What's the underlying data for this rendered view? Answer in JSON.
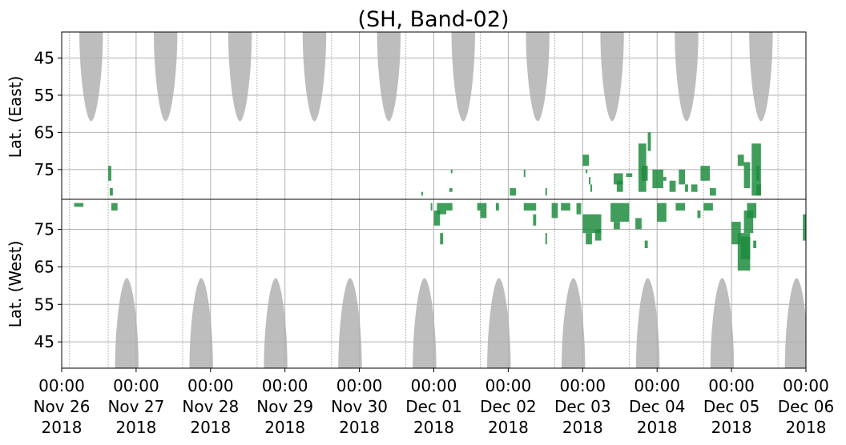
{
  "chart_data": {
    "type": "heatmap",
    "title": "(SH, Band-02)",
    "x_ticks": [
      {
        "time": "2018-11-26T00:00",
        "label": [
          "00:00",
          "Nov 26",
          "2018"
        ]
      },
      {
        "time": "2018-11-27T00:00",
        "label": [
          "00:00",
          "Nov 27",
          "2018"
        ]
      },
      {
        "time": "2018-11-28T00:00",
        "label": [
          "00:00",
          "Nov 28",
          "2018"
        ]
      },
      {
        "time": "2018-11-29T00:00",
        "label": [
          "00:00",
          "Nov 29",
          "2018"
        ]
      },
      {
        "time": "2018-11-30T00:00",
        "label": [
          "00:00",
          "Nov 30",
          "2018"
        ]
      },
      {
        "time": "2018-12-01T00:00",
        "label": [
          "00:00",
          "Dec 01",
          "2018"
        ]
      },
      {
        "time": "2018-12-02T00:00",
        "label": [
          "00:00",
          "Dec 02",
          "2018"
        ]
      },
      {
        "time": "2018-12-03T00:00",
        "label": [
          "00:00",
          "Dec 03",
          "2018"
        ]
      },
      {
        "time": "2018-12-04T00:00",
        "label": [
          "00:00",
          "Dec 04",
          "2018"
        ]
      },
      {
        "time": "2018-12-05T00:00",
        "label": [
          "00:00",
          "Dec 05",
          "2018"
        ]
      },
      {
        "time": "2018-12-06T00:00",
        "label": [
          "00:00",
          "Dec 06",
          "2018"
        ]
      }
    ],
    "xlim": [
      "2018-11-26T00:00",
      "2018-12-06T00:00"
    ],
    "panels": [
      {
        "id": "east",
        "ylabel": "Lat. (East)",
        "yticks": [
          45,
          55,
          65,
          75
        ],
        "ylim": [
          38,
          83
        ],
        "invert": true,
        "grid": true,
        "daylight_color": "#bdbdbd",
        "daylight_regions": [
          {
            "center": "2018-11-26T09:30",
            "half_width_hours": 3.8,
            "max_lat": 62
          },
          {
            "center": "2018-11-27T09:30",
            "half_width_hours": 3.8,
            "max_lat": 62
          },
          {
            "center": "2018-11-28T09:30",
            "half_width_hours": 3.8,
            "max_lat": 62
          },
          {
            "center": "2018-11-29T09:30",
            "half_width_hours": 3.8,
            "max_lat": 62
          },
          {
            "center": "2018-11-30T09:30",
            "half_width_hours": 3.8,
            "max_lat": 62
          },
          {
            "center": "2018-12-01T09:30",
            "half_width_hours": 3.8,
            "max_lat": 62
          },
          {
            "center": "2018-12-02T09:30",
            "half_width_hours": 3.8,
            "max_lat": 62
          },
          {
            "center": "2018-12-03T09:30",
            "half_width_hours": 3.8,
            "max_lat": 62
          },
          {
            "center": "2018-12-04T09:30",
            "half_width_hours": 3.8,
            "max_lat": 62
          },
          {
            "center": "2018-12-05T09:30",
            "half_width_hours": 3.8,
            "max_lat": 62
          }
        ],
        "vertical_lines": [
          "2018-11-26T02:30",
          "2018-11-26T15:00",
          "2018-11-27T15:00",
          "2018-11-28T15:00",
          "2018-11-29T15:00",
          "2018-11-30T15:00",
          "2018-12-01T15:00",
          "2018-12-02T15:00",
          "2018-12-03T15:00",
          "2018-12-04T15:00",
          "2018-12-05T15:00"
        ],
        "echo_color": "#1e8c3e",
        "echoes": [
          {
            "t0": "2018-11-26T15:00",
            "t1": "2018-11-26T16:00",
            "lat0": 74,
            "lat1": 78
          },
          {
            "t0": "2018-11-26T15:30",
            "t1": "2018-11-26T16:30",
            "lat0": 80,
            "lat1": 82
          },
          {
            "t0": "2018-11-30T20:00",
            "t1": "2018-11-30T20:30",
            "lat0": 81,
            "lat1": 82
          },
          {
            "t0": "2018-12-01T05:00",
            "t1": "2018-12-01T06:00",
            "lat0": 80,
            "lat1": 81
          },
          {
            "t0": "2018-12-01T05:30",
            "t1": "2018-12-01T06:00",
            "lat0": 75,
            "lat1": 76
          },
          {
            "t0": "2018-12-02T00:30",
            "t1": "2018-12-02T02:30",
            "lat0": 80,
            "lat1": 82
          },
          {
            "t0": "2018-12-02T05:00",
            "t1": "2018-12-02T05:30",
            "lat0": 75,
            "lat1": 77
          },
          {
            "t0": "2018-12-02T12:00",
            "t1": "2018-12-02T12:30",
            "lat0": 80,
            "lat1": 82
          },
          {
            "t0": "2018-12-03T00:00",
            "t1": "2018-12-03T02:00",
            "lat0": 71,
            "lat1": 74
          },
          {
            "t0": "2018-12-03T01:00",
            "t1": "2018-12-03T01:30",
            "lat0": 75,
            "lat1": 76
          },
          {
            "t0": "2018-12-03T02:00",
            "t1": "2018-12-03T02:30",
            "lat0": 77,
            "lat1": 79
          },
          {
            "t0": "2018-12-03T02:30",
            "t1": "2018-12-03T03:00",
            "lat0": 79,
            "lat1": 81
          },
          {
            "t0": "2018-12-03T10:00",
            "t1": "2018-12-03T13:00",
            "lat0": 76,
            "lat1": 79
          },
          {
            "t0": "2018-12-03T11:00",
            "t1": "2018-12-03T13:00",
            "lat0": 78,
            "lat1": 81
          },
          {
            "t0": "2018-12-03T14:00",
            "t1": "2018-12-03T16:00",
            "lat0": 76,
            "lat1": 77
          },
          {
            "t0": "2018-12-03T18:00",
            "t1": "2018-12-03T20:30",
            "lat0": 68,
            "lat1": 81
          },
          {
            "t0": "2018-12-03T19:00",
            "t1": "2018-12-03T21:00",
            "lat0": 74,
            "lat1": 78
          },
          {
            "t0": "2018-12-03T21:00",
            "t1": "2018-12-03T22:00",
            "lat0": 65,
            "lat1": 70
          },
          {
            "t0": "2018-12-03T22:30",
            "t1": "2018-12-04T02:00",
            "lat0": 75,
            "lat1": 80
          },
          {
            "t0": "2018-12-04T02:00",
            "t1": "2018-12-04T03:00",
            "lat0": 77,
            "lat1": 78
          },
          {
            "t0": "2018-12-04T04:00",
            "t1": "2018-12-04T06:00",
            "lat0": 78,
            "lat1": 81
          },
          {
            "t0": "2018-12-04T07:00",
            "t1": "2018-12-04T09:00",
            "lat0": 75,
            "lat1": 79
          },
          {
            "t0": "2018-12-04T09:00",
            "t1": "2018-12-04T10:00",
            "lat0": 79,
            "lat1": 81
          },
          {
            "t0": "2018-12-04T11:00",
            "t1": "2018-12-04T13:00",
            "lat0": 79,
            "lat1": 81
          },
          {
            "t0": "2018-12-04T14:00",
            "t1": "2018-12-04T17:00",
            "lat0": 74,
            "lat1": 78
          },
          {
            "t0": "2018-12-04T17:00",
            "t1": "2018-12-04T19:00",
            "lat0": 80,
            "lat1": 82
          },
          {
            "t0": "2018-12-05T02:00",
            "t1": "2018-12-05T04:00",
            "lat0": 71,
            "lat1": 74
          },
          {
            "t0": "2018-12-05T04:00",
            "t1": "2018-12-05T06:00",
            "lat0": 73,
            "lat1": 80
          },
          {
            "t0": "2018-12-05T06:30",
            "t1": "2018-12-05T09:30",
            "lat0": 68,
            "lat1": 82
          },
          {
            "t0": "2018-12-05T08:00",
            "t1": "2018-12-05T09:00",
            "lat0": 74,
            "lat1": 78
          },
          {
            "t0": "2018-12-05T08:00",
            "t1": "2018-12-05T09:30",
            "lat0": 79,
            "lat1": 82
          }
        ]
      },
      {
        "id": "west",
        "ylabel": "Lat. (West)",
        "yticks": [
          75,
          65,
          55,
          45
        ],
        "ylim": [
          83,
          38
        ],
        "invert": false,
        "grid": true,
        "daylight_color": "#bdbdbd",
        "daylight_regions": [
          {
            "center": "2018-11-26T21:00",
            "half_width_hours": 3.8,
            "max_lat": 62
          },
          {
            "center": "2018-11-27T21:00",
            "half_width_hours": 3.8,
            "max_lat": 62
          },
          {
            "center": "2018-11-28T21:00",
            "half_width_hours": 3.8,
            "max_lat": 62
          },
          {
            "center": "2018-11-29T21:00",
            "half_width_hours": 3.8,
            "max_lat": 62
          },
          {
            "center": "2018-11-30T21:00",
            "half_width_hours": 3.8,
            "max_lat": 62
          },
          {
            "center": "2018-12-01T21:00",
            "half_width_hours": 3.8,
            "max_lat": 62
          },
          {
            "center": "2018-12-02T21:00",
            "half_width_hours": 3.8,
            "max_lat": 62
          },
          {
            "center": "2018-12-03T21:00",
            "half_width_hours": 3.8,
            "max_lat": 62
          },
          {
            "center": "2018-12-04T21:00",
            "half_width_hours": 3.8,
            "max_lat": 62
          },
          {
            "center": "2018-12-05T21:00",
            "half_width_hours": 3.8,
            "max_lat": 62
          }
        ],
        "vertical_lines": [
          "2018-11-26T02:30",
          "2018-11-26T15:00",
          "2018-11-27T15:00",
          "2018-11-28T15:00",
          "2018-11-29T15:00",
          "2018-11-30T15:00",
          "2018-12-01T15:00",
          "2018-12-02T15:00",
          "2018-12-03T15:00",
          "2018-12-04T15:00",
          "2018-12-05T15:00"
        ],
        "echo_color": "#1e8c3e",
        "echoes": [
          {
            "t0": "2018-11-26T04:00",
            "t1": "2018-11-26T07:00",
            "lat0": 81,
            "lat1": 82
          },
          {
            "t0": "2018-11-26T16:00",
            "t1": "2018-11-26T18:00",
            "lat0": 80,
            "lat1": 82
          },
          {
            "t0": "2018-11-30T23:00",
            "t1": "2018-11-30T23:30",
            "lat0": 80,
            "lat1": 82
          },
          {
            "t0": "2018-12-01T00:00",
            "t1": "2018-12-01T02:00",
            "lat0": 76,
            "lat1": 80
          },
          {
            "t0": "2018-12-01T01:00",
            "t1": "2018-12-01T04:00",
            "lat0": 79,
            "lat1": 82
          },
          {
            "t0": "2018-12-01T02:00",
            "t1": "2018-12-01T03:00",
            "lat0": 71,
            "lat1": 74
          },
          {
            "t0": "2018-12-01T04:00",
            "t1": "2018-12-01T06:00",
            "lat0": 80,
            "lat1": 82
          },
          {
            "t0": "2018-12-01T14:00",
            "t1": "2018-12-01T17:00",
            "lat0": 80,
            "lat1": 82
          },
          {
            "t0": "2018-12-01T15:00",
            "t1": "2018-12-01T17:00",
            "lat0": 78,
            "lat1": 80
          },
          {
            "t0": "2018-12-01T20:00",
            "t1": "2018-12-01T21:00",
            "lat0": 80,
            "lat1": 82
          },
          {
            "t0": "2018-12-02T05:00",
            "t1": "2018-12-02T09:00",
            "lat0": 80,
            "lat1": 82
          },
          {
            "t0": "2018-12-02T08:00",
            "t1": "2018-12-02T09:00",
            "lat0": 76,
            "lat1": 79
          },
          {
            "t0": "2018-12-02T12:00",
            "t1": "2018-12-02T12:30",
            "lat0": 71,
            "lat1": 74
          },
          {
            "t0": "2018-12-02T14:00",
            "t1": "2018-12-02T16:00",
            "lat0": 78,
            "lat1": 82
          },
          {
            "t0": "2018-12-02T17:00",
            "t1": "2018-12-02T20:00",
            "lat0": 80,
            "lat1": 82
          },
          {
            "t0": "2018-12-02T22:00",
            "t1": "2018-12-02T23:30",
            "lat0": 79,
            "lat1": 82
          },
          {
            "t0": "2018-12-03T00:00",
            "t1": "2018-12-03T06:00",
            "lat0": 74,
            "lat1": 79
          },
          {
            "t0": "2018-12-03T01:00",
            "t1": "2018-12-03T03:00",
            "lat0": 71,
            "lat1": 74
          },
          {
            "t0": "2018-12-03T04:00",
            "t1": "2018-12-03T06:00",
            "lat0": 72,
            "lat1": 75
          },
          {
            "t0": "2018-12-03T09:00",
            "t1": "2018-12-03T15:00",
            "lat0": 77,
            "lat1": 82
          },
          {
            "t0": "2018-12-03T10:00",
            "t1": "2018-12-03T12:00",
            "lat0": 75,
            "lat1": 77
          },
          {
            "t0": "2018-12-03T17:00",
            "t1": "2018-12-03T19:00",
            "lat0": 75,
            "lat1": 78
          },
          {
            "t0": "2018-12-03T20:00",
            "t1": "2018-12-03T21:00",
            "lat0": 70,
            "lat1": 72
          },
          {
            "t0": "2018-12-04T00:00",
            "t1": "2018-12-04T03:00",
            "lat0": 77,
            "lat1": 82
          },
          {
            "t0": "2018-12-04T06:00",
            "t1": "2018-12-04T09:00",
            "lat0": 80,
            "lat1": 82
          },
          {
            "t0": "2018-12-04T13:00",
            "t1": "2018-12-04T14:00",
            "lat0": 78,
            "lat1": 80
          },
          {
            "t0": "2018-12-04T15:00",
            "t1": "2018-12-04T18:00",
            "lat0": 80,
            "lat1": 82
          },
          {
            "t0": "2018-12-05T00:00",
            "t1": "2018-12-05T03:00",
            "lat0": 71,
            "lat1": 77
          },
          {
            "t0": "2018-12-05T02:00",
            "t1": "2018-12-05T06:00",
            "lat0": 64,
            "lat1": 74
          },
          {
            "t0": "2018-12-05T03:00",
            "t1": "2018-12-05T06:00",
            "lat0": 67,
            "lat1": 73
          },
          {
            "t0": "2018-12-05T04:00",
            "t1": "2018-12-05T07:00",
            "lat0": 74,
            "lat1": 80
          },
          {
            "t0": "2018-12-05T05:00",
            "t1": "2018-12-05T08:00",
            "lat0": 78,
            "lat1": 82
          },
          {
            "t0": "2018-12-05T07:00",
            "t1": "2018-12-05T08:00",
            "lat0": 70,
            "lat1": 72
          },
          {
            "t0": "2018-12-05T23:00",
            "t1": "2018-12-05T23:59",
            "lat0": 72,
            "lat1": 79
          }
        ]
      }
    ]
  }
}
